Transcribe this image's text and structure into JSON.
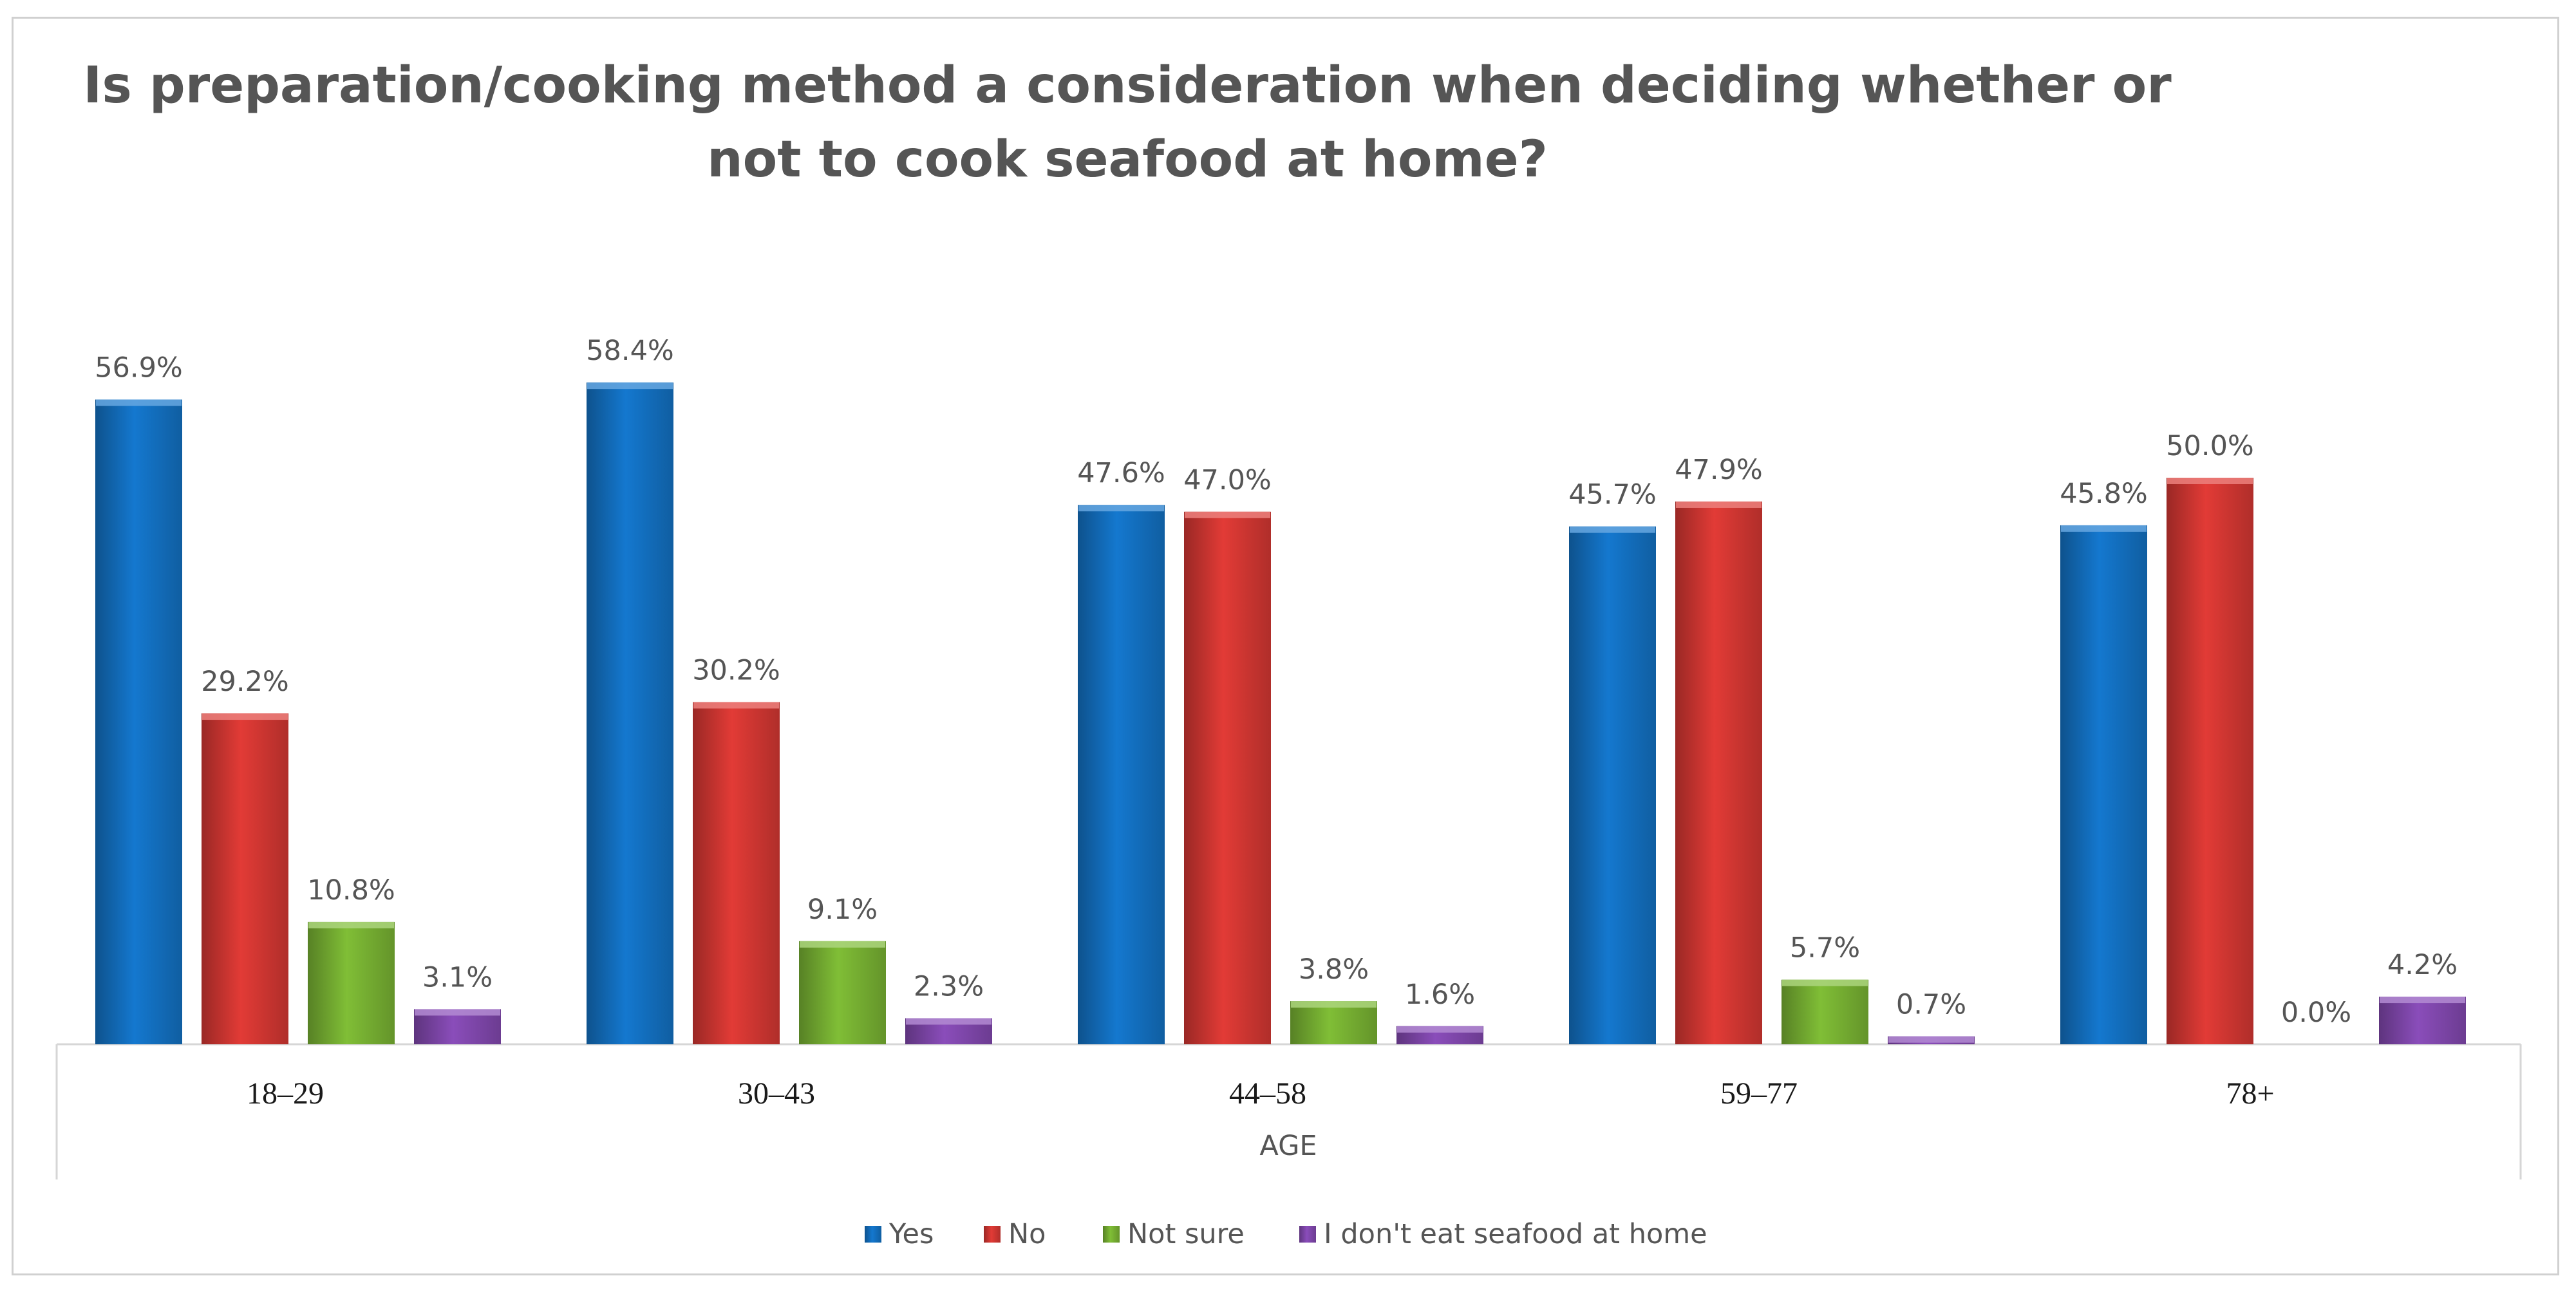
{
  "chart_data": {
    "type": "bar",
    "title_lines": [
      "Is preparation/cooking method a consideration when deciding whether or",
      "not to cook seafood at home?"
    ],
    "xlabel": "AGE",
    "ylabel": "",
    "ylim": [
      0,
      100
    ],
    "grid": false,
    "legend_position": "bottom",
    "categories": [
      "18–29",
      "30–43",
      "44–58",
      "59–77",
      "78+"
    ],
    "series": [
      {
        "name": "Yes",
        "color": "#1478CF",
        "values": [
          56.9,
          58.4,
          47.6,
          45.7,
          45.8
        ],
        "labels": [
          "56.9%",
          "58.4%",
          "47.6%",
          "45.7%",
          "45.8%"
        ]
      },
      {
        "name": "No",
        "color": "#E23B36",
        "values": [
          29.2,
          30.2,
          47.0,
          47.9,
          50.0
        ],
        "labels": [
          "29.2%",
          "30.2%",
          "47.0%",
          "47.9%",
          "50.0%"
        ]
      },
      {
        "name": "Not sure",
        "color": "#80BE36",
        "values": [
          10.8,
          9.1,
          3.8,
          5.7,
          0.0
        ],
        "labels": [
          "10.8%",
          "9.1%",
          "3.8%",
          "5.7%",
          "0.0%"
        ]
      },
      {
        "name": "I don't eat seafood at home",
        "color": "#8A4DBA",
        "values": [
          3.1,
          2.3,
          1.6,
          0.7,
          4.2
        ],
        "labels": [
          "3.1%",
          "2.3%",
          "1.6%",
          "0.7%",
          "4.2%"
        ]
      }
    ]
  }
}
